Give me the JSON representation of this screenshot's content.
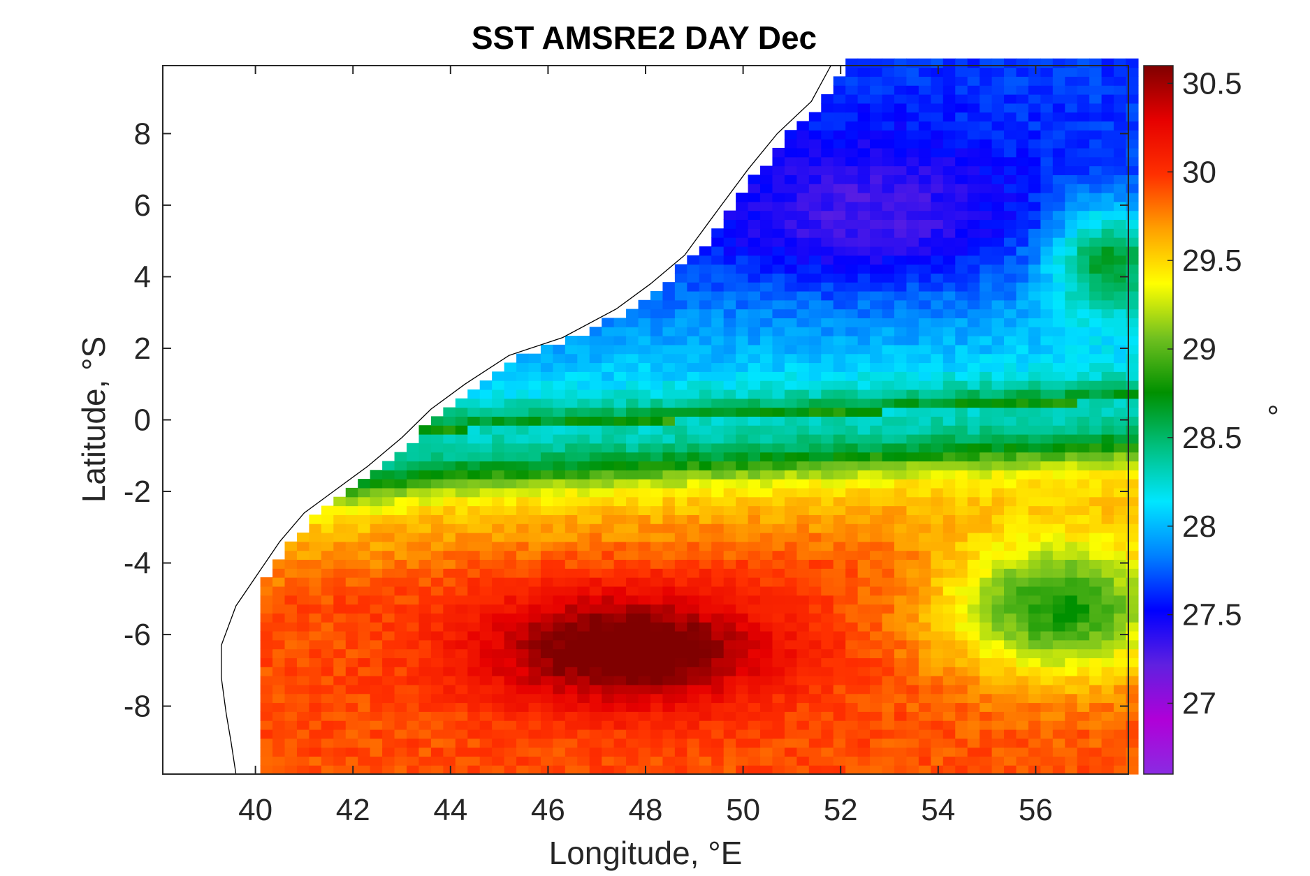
{
  "chart_data": {
    "type": "heatmap",
    "title": "SST AMSRE2 DAY Dec",
    "xlabel": "Longitude, °E",
    "ylabel": "Latitude, °S",
    "xlim": [
      38.1,
      57.9
    ],
    "ylim": [
      -9.9,
      9.9
    ],
    "x_ticks": [
      "40",
      "42",
      "44",
      "46",
      "48",
      "50",
      "52",
      "54",
      "56"
    ],
    "y_ticks": [
      "8",
      "6",
      "4",
      "2",
      "0",
      "-2",
      "-4",
      "-6",
      "-8"
    ],
    "colorbar": {
      "label": "°",
      "range": [
        26.6,
        30.6
      ],
      "ticks": [
        "30.5",
        "30",
        "29.5",
        "29",
        "28.5",
        "28",
        "27.5",
        "27"
      ],
      "colors": [
        "#8a2be2",
        "#b000d8",
        "#6020e0",
        "#0000ff",
        "#0080ff",
        "#00e6ff",
        "#00c080",
        "#009000",
        "#70c020",
        "#ffff00",
        "#ffa000",
        "#ff3000",
        "#e60000",
        "#800000"
      ]
    },
    "grid": false,
    "cell_size_deg": 0.25,
    "features": {
      "north_cool_pool": {
        "lon": 52.5,
        "lat": 6.5,
        "value_approx": 26.8
      },
      "blue_band_center": {
        "lat_trend": "from ~0 at 44E rising to ~4 at 54E",
        "value_approx": 27.7
      },
      "cyan_band": {
        "value_approx": 28.3
      },
      "green_front": {
        "lat": -1,
        "value_approx": 28.9
      },
      "south_warm_pool": {
        "lon": 47.5,
        "lat": -6.5,
        "value_approx": 30.55
      },
      "east_southeast": {
        "value_approx": 29.5
      }
    }
  }
}
